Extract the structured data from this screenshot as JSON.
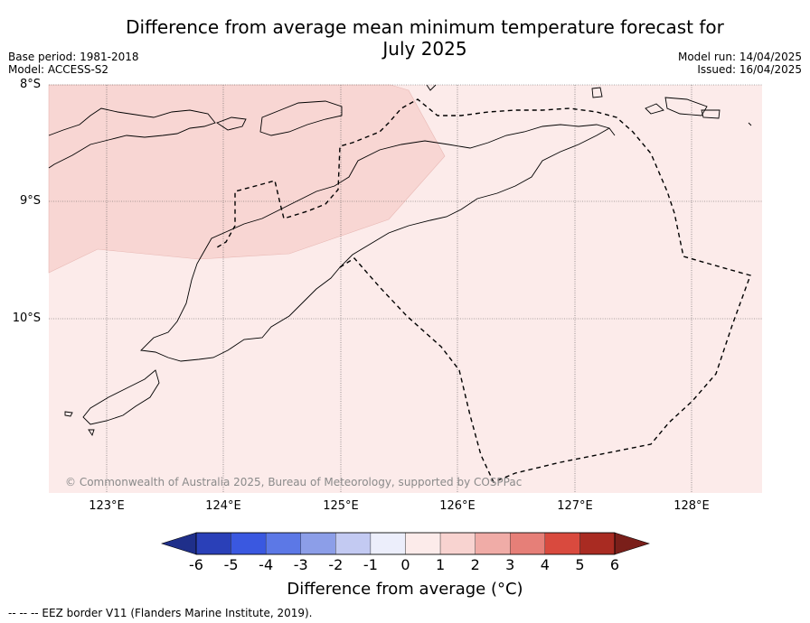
{
  "title_line1": "Difference from average mean minimum temperature forecast for",
  "title_line2": "July 2025",
  "base_period": "Base period: 1981-2018",
  "model": "Model: ACCESS-S2",
  "model_run": "Model run: 14/04/2025",
  "issued": "Issued: 16/04/2025",
  "copyright": "© Commonwealth of Australia 2025, Bureau of Meteorology, supported by COSPPac",
  "latitudes": [
    "8°S",
    "9°S",
    "10°S"
  ],
  "longitudes": [
    "123°E",
    "124°E",
    "125°E",
    "126°E",
    "127°E",
    "128°E"
  ],
  "colorbar": {
    "title": "Difference from average (°C)",
    "ticks": [
      "-6",
      "-5",
      "-4",
      "-3",
      "-2",
      "-1",
      "0",
      "1",
      "2",
      "3",
      "4",
      "5",
      "6"
    ],
    "colors": [
      "#1f2f8a",
      "#2a40b8",
      "#3a58e0",
      "#5c78e6",
      "#8c9ee8",
      "#c3caf2",
      "#eceefb",
      "#fcebea",
      "#f8d3d0",
      "#f0aca7",
      "#e67f78",
      "#d94a3e",
      "#a92b22",
      "#7a1f1a"
    ]
  },
  "map_fill": {
    "base_color": "#fcebea",
    "warm_color": "#f8d6d3"
  },
  "legend_footer": "--  --  -- EEZ border V11 (Flanders Marine Institute, 2019)."
}
